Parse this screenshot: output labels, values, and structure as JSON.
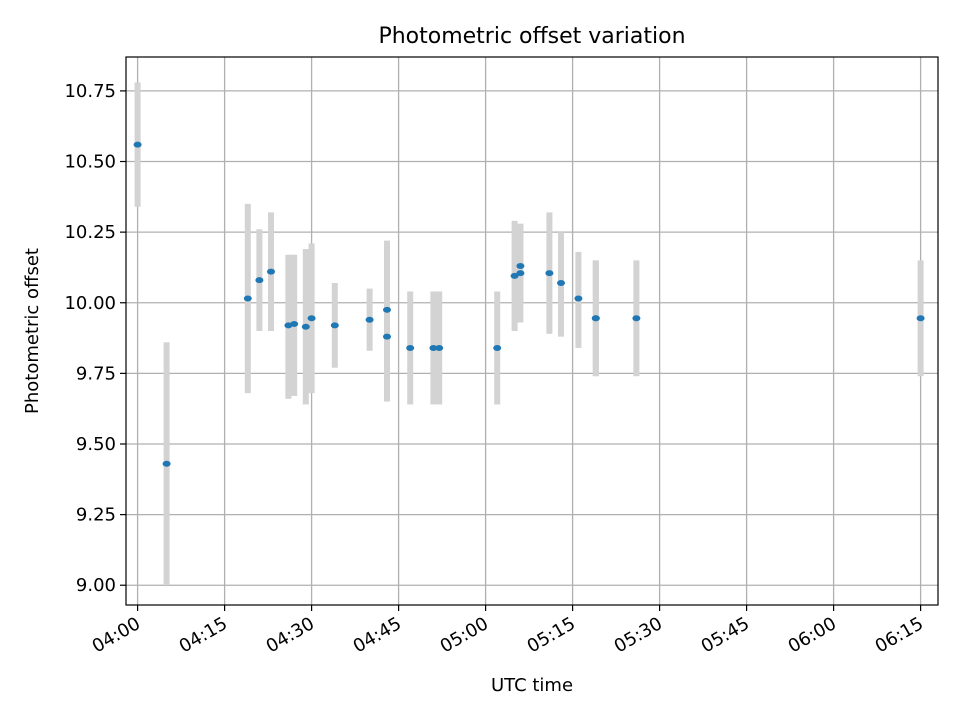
{
  "chart_data": {
    "type": "scatter",
    "title": "Photometric offset variation",
    "xlabel": "UTC time",
    "ylabel": "Photometric offset",
    "x_axis_kind": "time",
    "xlim": [
      "03:58",
      "06:18"
    ],
    "ylim": [
      8.93,
      10.87
    ],
    "x_ticks": [
      "04:00",
      "04:15",
      "04:30",
      "04:45",
      "05:00",
      "05:15",
      "05:30",
      "05:45",
      "06:00",
      "06:15"
    ],
    "y_ticks": [
      9.0,
      9.25,
      9.5,
      9.75,
      10.0,
      10.25,
      10.5,
      10.75
    ],
    "y_tick_labels": [
      "9.00",
      "9.25",
      "9.50",
      "9.75",
      "10.00",
      "10.25",
      "10.50",
      "10.75"
    ],
    "grid": true,
    "legend": "none",
    "colors": {
      "points": "#1f77b4",
      "errorbars": "#d3d3d3",
      "grid": "#b0b0b0"
    },
    "points": [
      {
        "x": "04:00",
        "y": 10.56,
        "low": 10.34,
        "high": 10.78
      },
      {
        "x": "04:05",
        "y": 9.43,
        "low": 9.0,
        "high": 9.86
      },
      {
        "x": "04:19",
        "y": 10.015,
        "low": 9.68,
        "high": 10.35
      },
      {
        "x": "04:21",
        "y": 10.08,
        "low": 9.9,
        "high": 10.26
      },
      {
        "x": "04:23",
        "y": 10.11,
        "low": 9.9,
        "high": 10.32
      },
      {
        "x": "04:26",
        "y": 9.92,
        "low": 9.66,
        "high": 10.17
      },
      {
        "x": "04:27",
        "y": 9.925,
        "low": 9.67,
        "high": 10.17
      },
      {
        "x": "04:29",
        "y": 9.915,
        "low": 9.64,
        "high": 10.19
      },
      {
        "x": "04:30",
        "y": 9.945,
        "low": 9.68,
        "high": 10.21
      },
      {
        "x": "04:34",
        "y": 9.92,
        "low": 9.77,
        "high": 10.07
      },
      {
        "x": "04:40",
        "y": 9.94,
        "low": 9.83,
        "high": 10.05
      },
      {
        "x": "04:43",
        "y": 9.975,
        "low": 9.72,
        "high": 10.22
      },
      {
        "x": "04:43",
        "y": 9.88,
        "low": 9.65,
        "high": 10.11
      },
      {
        "x": "04:47",
        "y": 9.84,
        "low": 9.64,
        "high": 10.04
      },
      {
        "x": "04:51",
        "y": 9.84,
        "low": 9.64,
        "high": 10.04
      },
      {
        "x": "04:52",
        "y": 9.84,
        "low": 9.64,
        "high": 10.04
      },
      {
        "x": "05:02",
        "y": 9.84,
        "low": 9.64,
        "high": 10.04
      },
      {
        "x": "05:05",
        "y": 10.095,
        "low": 9.9,
        "high": 10.29
      },
      {
        "x": "05:06",
        "y": 10.105,
        "low": 9.93,
        "high": 10.28
      },
      {
        "x": "05:06",
        "y": 10.13,
        "low": 10.0,
        "high": 10.27
      },
      {
        "x": "05:11",
        "y": 10.105,
        "low": 9.89,
        "high": 10.32
      },
      {
        "x": "05:13",
        "y": 10.07,
        "low": 9.88,
        "high": 10.25
      },
      {
        "x": "05:16",
        "y": 10.015,
        "low": 9.84,
        "high": 10.18
      },
      {
        "x": "05:19",
        "y": 9.945,
        "low": 9.74,
        "high": 10.15
      },
      {
        "x": "05:19",
        "y": 9.945,
        "low": 9.74,
        "high": 10.15
      },
      {
        "x": "05:26",
        "y": 9.945,
        "low": 9.74,
        "high": 10.15
      },
      {
        "x": "06:15",
        "y": 9.945,
        "low": 9.74,
        "high": 10.15
      }
    ]
  }
}
